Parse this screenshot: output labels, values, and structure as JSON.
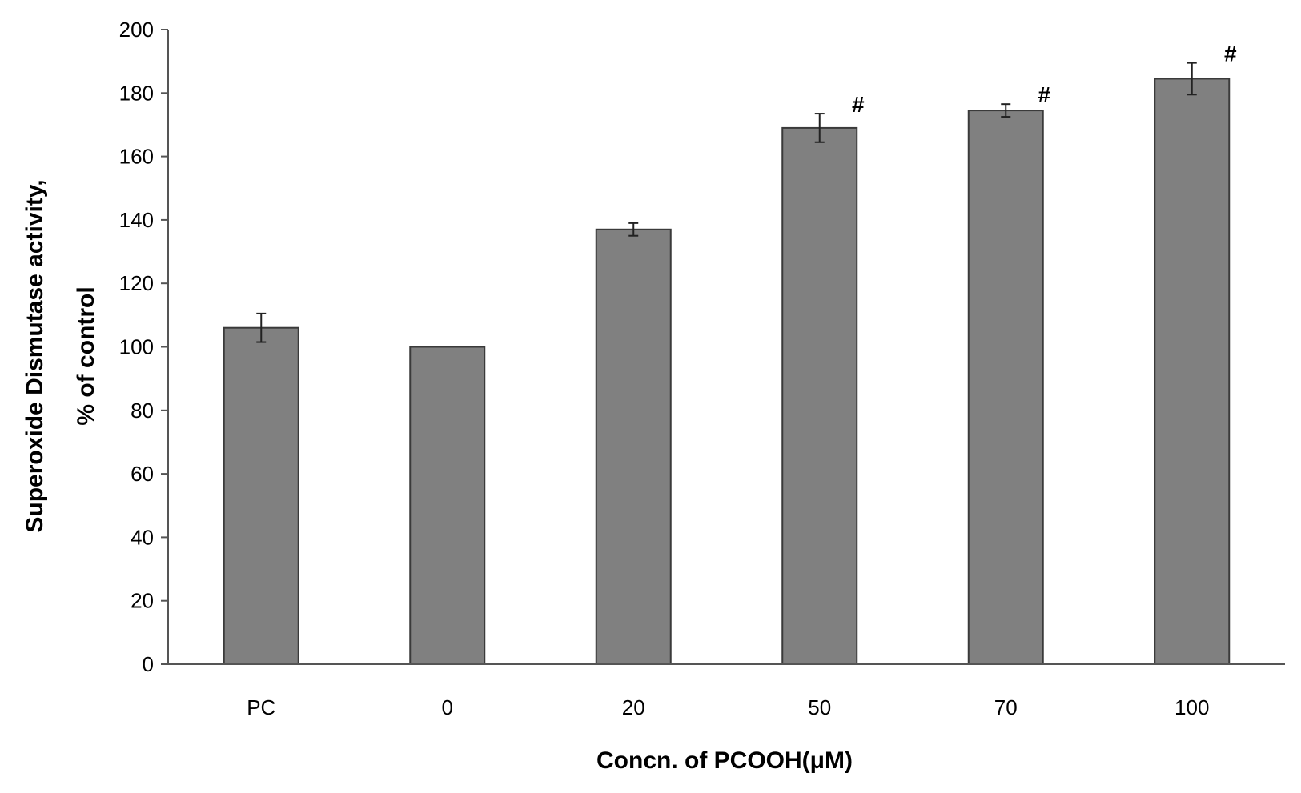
{
  "chart_data": {
    "type": "bar",
    "title": "",
    "xlabel": "Concn. of PCOOH(μM)",
    "ylabel_line1": "Superoxide Dismutase activity,",
    "ylabel_line2": "% of control",
    "categories": [
      "PC",
      "0",
      "20",
      "50",
      "70",
      "100"
    ],
    "values": [
      106,
      100,
      137,
      169,
      174.5,
      184.5
    ],
    "errors": [
      4.5,
      0,
      2,
      4.5,
      2,
      5
    ],
    "annotations": [
      "",
      "",
      "",
      "#",
      "#",
      "#"
    ],
    "ylim": [
      0,
      200
    ],
    "yticks": [
      0,
      20,
      40,
      60,
      80,
      100,
      120,
      140,
      160,
      180,
      200
    ],
    "grid": false,
    "bar_color": "#808080",
    "bar_edge_color": "#3a3a3a"
  }
}
